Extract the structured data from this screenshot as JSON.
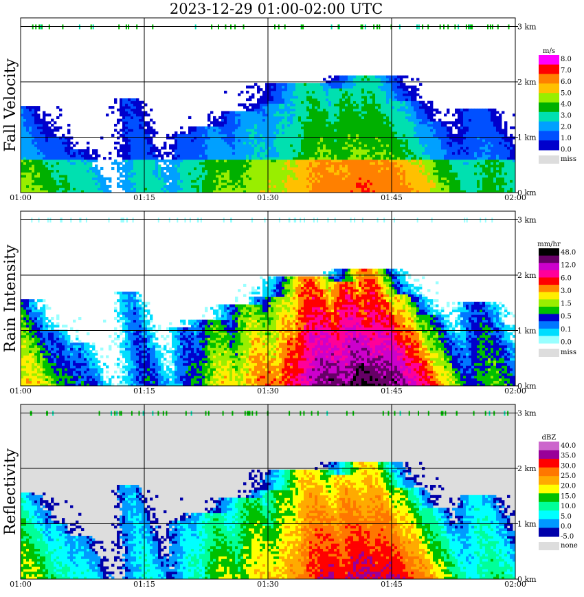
{
  "title": "2023-12-29   01:00-02:00 UTC",
  "chart_data": [
    {
      "type": "heatmap",
      "panel": "Fall Velocity",
      "ylabel": "Fall Velocity",
      "x_ticks": [
        "01:00",
        "01:15",
        "01:30",
        "01:45",
        "02:00"
      ],
      "y_ticks": [
        "0 km",
        "1 km",
        "2 km",
        "3 km"
      ],
      "ylim_km": [
        0,
        3.2
      ],
      "xlim": [
        "01:00",
        "02:00"
      ],
      "background": "#ffffff",
      "colorbar": {
        "unit": "m/s",
        "labels": [
          "8.0",
          "7.0",
          "6.0",
          "5.0",
          "4.0",
          "3.0",
          "2.0",
          "1.0",
          "0.0"
        ],
        "colors": [
          "#ff00ff",
          "#ff0000",
          "#ff8000",
          "#ffc000",
          "#99ee00",
          "#00b000",
          "#00e0b0",
          "#00a0ff",
          "#0050ff",
          "#0000cc"
        ],
        "missing_label": "miss",
        "missing_color": "#dddddd"
      }
    },
    {
      "type": "heatmap",
      "panel": "Rain Intensity",
      "ylabel": "Rain Intensity",
      "x_ticks": [
        "01:00",
        "01:15",
        "01:30",
        "01:45",
        "02:00"
      ],
      "y_ticks": [
        "0 km",
        "1 km",
        "2 km",
        "3 km"
      ],
      "ylim_km": [
        0,
        3.2
      ],
      "xlim": [
        "01:00",
        "02:00"
      ],
      "background": "#ffffff",
      "colorbar": {
        "unit": "mm/hr",
        "labels": [
          "48.0",
          "12.0",
          "6.0",
          "3.0",
          "1.5",
          "0.5",
          "0.1",
          "0.0"
        ],
        "colors": [
          "#000000",
          "#660066",
          "#cc00cc",
          "#ff0099",
          "#ff0000",
          "#ff8800",
          "#ffee00",
          "#99ee00",
          "#00c000",
          "#0000cc",
          "#0077ff",
          "#00ddff",
          "#99ffff"
        ],
        "missing_label": "miss",
        "missing_color": "#dddddd"
      }
    },
    {
      "type": "heatmap",
      "panel": "Reflectivity",
      "ylabel": "Reflectivity",
      "x_ticks": [
        "01:00",
        "01:15",
        "01:30",
        "01:45",
        "02:00"
      ],
      "y_ticks": [
        "0 km",
        "1 km",
        "2 km",
        "3 km"
      ],
      "ylim_km": [
        0,
        3.2
      ],
      "xlim": [
        "01:00",
        "02:00"
      ],
      "background": "#dddddd",
      "colorbar": {
        "unit": "dBZ",
        "labels": [
          "40.0",
          "35.0",
          "30.0",
          "25.0",
          "20.0",
          "15.0",
          "10.0",
          "5.0",
          "0.0",
          "-5.0"
        ],
        "colors": [
          "#cc66cc",
          "#990099",
          "#ff0000",
          "#ff7700",
          "#ffaa00",
          "#ffff00",
          "#00c000",
          "#00ff99",
          "#00ffff",
          "#0099ff",
          "#0000aa"
        ],
        "missing_label": "none",
        "missing_color": "#dddddd"
      }
    }
  ]
}
